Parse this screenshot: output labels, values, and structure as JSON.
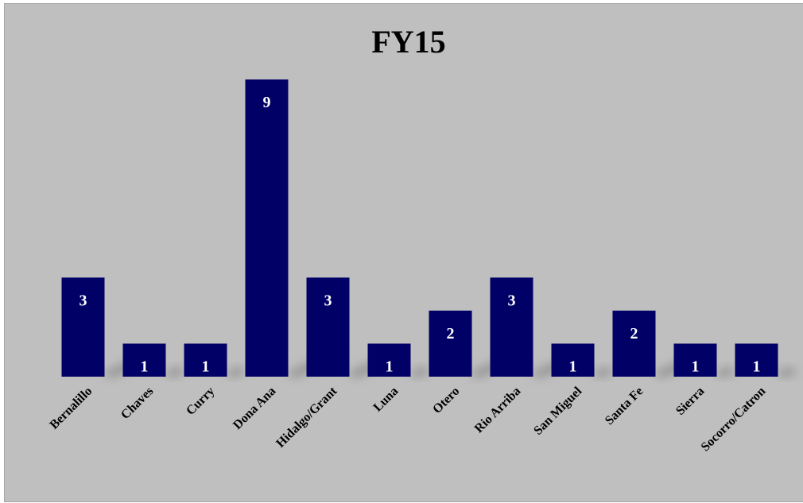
{
  "chart_data": {
    "type": "bar",
    "title": "FY15",
    "categories": [
      "Bernalillo",
      "Chaves",
      "Curry",
      "Dona Ana",
      "Hidalgo/Grant",
      "Luna",
      "Otero",
      "Rio Arriba",
      "San Miguel",
      "Santa Fe",
      "Sierra",
      "Socorro/Catron"
    ],
    "values": [
      3,
      1,
      1,
      9,
      3,
      1,
      2,
      3,
      1,
      2,
      1,
      1
    ],
    "xlabel": "",
    "ylabel": "",
    "ylim": [
      0,
      9
    ],
    "grid": false,
    "legend": "none",
    "data_labels": true,
    "colors": {
      "bar": "#000066",
      "background": "#bfbfbf",
      "label_inside": "#ffffff",
      "text": "#000000"
    }
  }
}
